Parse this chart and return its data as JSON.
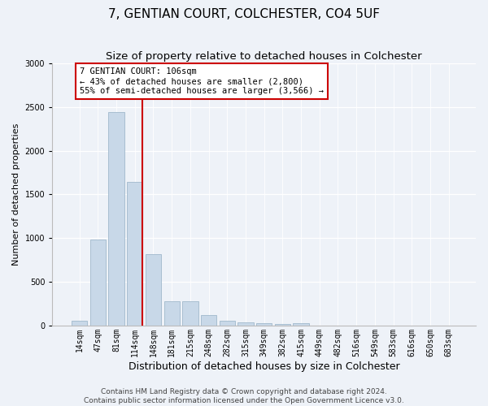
{
  "title": "7, GENTIAN COURT, COLCHESTER, CO4 5UF",
  "subtitle": "Size of property relative to detached houses in Colchester",
  "xlabel": "Distribution of detached houses by size in Colchester",
  "ylabel": "Number of detached properties",
  "categories": [
    "14sqm",
    "47sqm",
    "81sqm",
    "114sqm",
    "148sqm",
    "181sqm",
    "215sqm",
    "248sqm",
    "282sqm",
    "315sqm",
    "349sqm",
    "382sqm",
    "415sqm",
    "449sqm",
    "482sqm",
    "516sqm",
    "549sqm",
    "583sqm",
    "616sqm",
    "650sqm",
    "683sqm"
  ],
  "values": [
    55,
    985,
    2440,
    1640,
    820,
    275,
    275,
    120,
    55,
    40,
    30,
    22,
    28,
    0,
    0,
    0,
    0,
    0,
    0,
    0,
    0
  ],
  "bar_color": "#c8d8e8",
  "bar_edge_color": "#a0b8cc",
  "red_line_index": 3,
  "annotation_text": "7 GENTIAN COURT: 106sqm\n← 43% of detached houses are smaller (2,800)\n55% of semi-detached houses are larger (3,566) →",
  "annotation_box_color": "#ffffff",
  "annotation_box_edge": "#cc0000",
  "red_line_color": "#cc0000",
  "ylim": [
    0,
    3000
  ],
  "yticks": [
    0,
    500,
    1000,
    1500,
    2000,
    2500,
    3000
  ],
  "background_color": "#eef2f8",
  "axes_bg_color": "#eef2f8",
  "footer_line1": "Contains HM Land Registry data © Crown copyright and database right 2024.",
  "footer_line2": "Contains public sector information licensed under the Open Government Licence v3.0.",
  "title_fontsize": 11,
  "subtitle_fontsize": 9.5,
  "xlabel_fontsize": 9,
  "ylabel_fontsize": 8,
  "tick_fontsize": 7,
  "footer_fontsize": 6.5,
  "annotation_fontsize": 7.5
}
